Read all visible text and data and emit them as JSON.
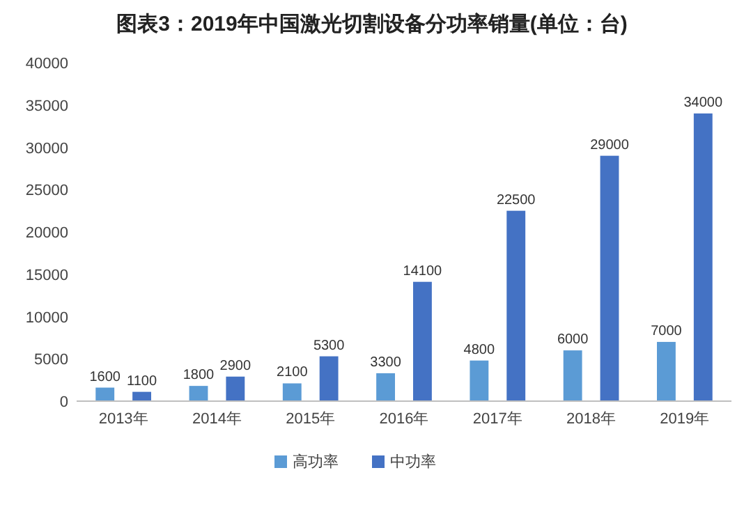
{
  "chart_data": {
    "type": "bar",
    "title": "图表3：2019年中国激光切割设备分功率销量(单位：台)",
    "categories": [
      "2013年",
      "2014年",
      "2015年",
      "2016年",
      "2017年",
      "2018年",
      "2019年"
    ],
    "series": [
      {
        "name": "高功率",
        "color": "#5b9bd5",
        "values": [
          1600,
          1800,
          2100,
          3300,
          4800,
          6000,
          7000
        ]
      },
      {
        "name": "中功率",
        "color": "#4472c4",
        "values": [
          1100,
          2900,
          5300,
          14100,
          22500,
          29000,
          34000
        ]
      }
    ],
    "ylim": [
      0,
      40000
    ],
    "yticks": [
      0,
      5000,
      10000,
      15000,
      20000,
      25000,
      30000,
      35000,
      40000
    ],
    "data_labels": true,
    "legend": "bottom"
  }
}
